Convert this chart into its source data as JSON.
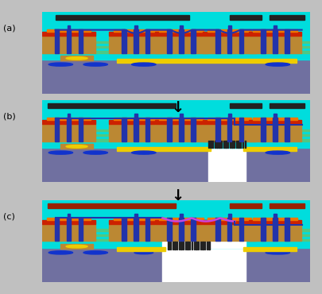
{
  "bg_color": "#7070a0",
  "cyan_color": "#00dddd",
  "black_color": "#222222",
  "yellow_color": "#eecc00",
  "orange_color": "#ee7700",
  "red_top": "#cc2200",
  "navy_color": "#2233aa",
  "tan_color": "#bb8833",
  "blue_oval": "#1133cc",
  "white_color": "#ffffff",
  "purple_color": "#cc44dd",
  "dark_red_bar": "#992200",
  "gray_bg": "#c0c0c0",
  "label_a": "(a)",
  "label_b": "(b)",
  "label_c": "(c)"
}
